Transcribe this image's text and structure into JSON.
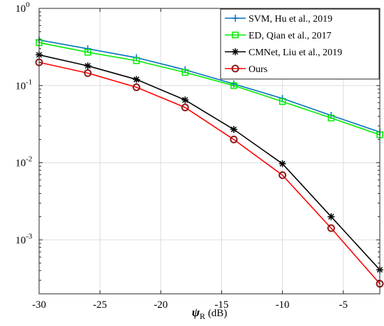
{
  "chart_data": {
    "type": "line",
    "title": "",
    "xlabel_main": "ψ",
    "xlabel_sub": "R",
    "xlabel_unit": " (dB)",
    "ylabel": "",
    "yscale": "log",
    "xlim": [
      -30,
      -2
    ],
    "ylim": [
      0.0002,
      1
    ],
    "x": [
      -30,
      -26,
      -22,
      -18,
      -14,
      -10,
      -6,
      -2
    ],
    "x_tick_labels": [
      "-30",
      "-25",
      "-20",
      "-15",
      "-10",
      "-5"
    ],
    "x_ticks": [
      -30,
      -25,
      -20,
      -15,
      -10,
      -5
    ],
    "y_ticks": [
      {
        "base": "10",
        "exp": "0",
        "value": 1
      },
      {
        "base": "10",
        "exp": "-1",
        "value": 0.1
      },
      {
        "base": "10",
        "exp": "-2",
        "value": 0.01
      },
      {
        "base": "10",
        "exp": "-3",
        "value": 0.001
      }
    ],
    "grid": true,
    "legend_position": "top-right",
    "series": [
      {
        "name": "SVM, Hu et al., 2019",
        "color": "#0072BD",
        "marker": "plus",
        "values": [
          0.39,
          0.3,
          0.23,
          0.16,
          0.105,
          0.068,
          0.041,
          0.025
        ]
      },
      {
        "name": "ED, Qian et al., 2017",
        "color": "#00EE00",
        "marker": "square",
        "values": [
          0.36,
          0.27,
          0.21,
          0.148,
          0.1,
          0.062,
          0.038,
          0.023
        ]
      },
      {
        "name": "CMNet, Liu et al., 2019",
        "color": "#000000",
        "marker": "asterisk",
        "values": [
          0.25,
          0.18,
          0.12,
          0.065,
          0.027,
          0.0097,
          0.002,
          0.00041
        ]
      },
      {
        "name": "Ours",
        "color": "#FF0000",
        "marker": "circle",
        "values": [
          0.2,
          0.145,
          0.095,
          0.052,
          0.02,
          0.0069,
          0.00142,
          0.00027
        ]
      }
    ]
  }
}
